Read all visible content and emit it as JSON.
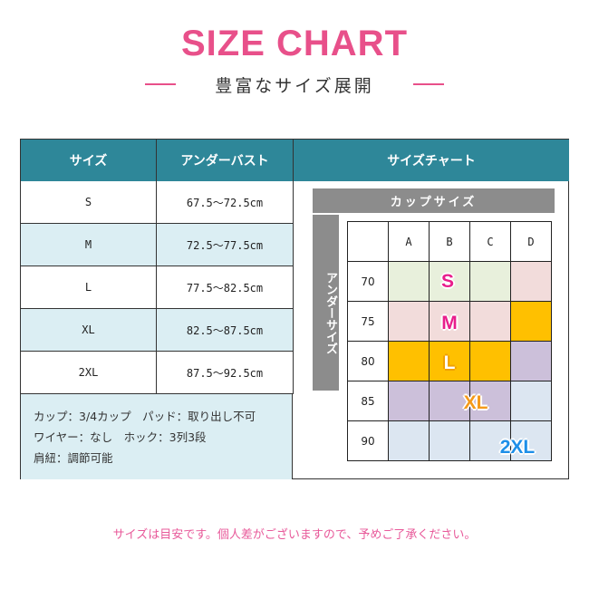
{
  "title": "SIZE CHART",
  "subtitle": "豊富なサイズ展開",
  "table": {
    "headers": [
      "サイズ",
      "アンダーバスト",
      "サイズチャート"
    ],
    "rows": [
      [
        "S",
        "67.5～72.5cm"
      ],
      [
        "M",
        "72.5～77.5cm"
      ],
      [
        "L",
        "77.5～82.5cm"
      ],
      [
        "XL",
        "82.5～87.5cm"
      ],
      [
        "2XL",
        "87.5～92.5cm"
      ]
    ],
    "notes": [
      "カップ：3/4カップ　パッド：取り出し不可",
      "ワイヤー：なし　ホック：3列3段",
      "肩紐：調節可能"
    ]
  },
  "size_chart": {
    "cup_label": "カップサイズ",
    "under_label": "アンダーサイズ",
    "cups": [
      "A",
      "B",
      "C",
      "D"
    ],
    "unders": [
      "70",
      "75",
      "80",
      "85",
      "90"
    ],
    "cell_sizes": [
      [
        "S",
        "S",
        "S",
        "M"
      ],
      [
        "M",
        "M",
        "M",
        "L"
      ],
      [
        "L",
        "L",
        "L",
        "XL"
      ],
      [
        "XL",
        "XL",
        "XL",
        "2XL"
      ],
      [
        "2XL",
        "2XL",
        "2XL",
        "2XL"
      ]
    ],
    "size_labels": [
      "S",
      "M",
      "L",
      "XL",
      "2XL"
    ],
    "colors": {
      "S": "#e8f0dc",
      "M": "#f2dcdb",
      "L": "#ffc000",
      "XL": "#ccc0da",
      "2XL": "#dce6f1"
    },
    "label_colors": {
      "S": "#e81e8c",
      "M": "#e81e8c",
      "L": "#ffffff",
      "XL": "#f59a1a",
      "2XL": "#1e8fe8"
    }
  },
  "footer": "サイズは目安です。個人差がございますので、予めご了承ください。"
}
